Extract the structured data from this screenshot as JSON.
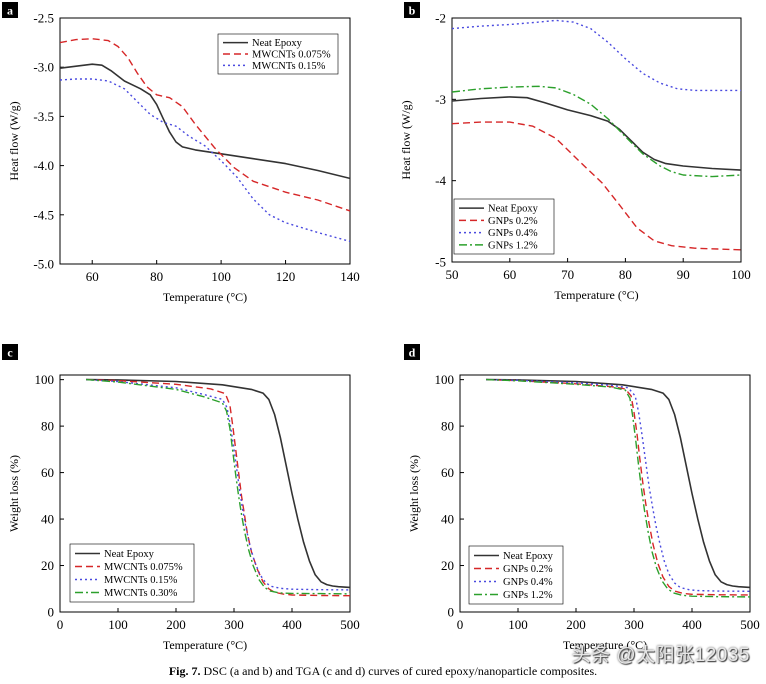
{
  "caption": {
    "label": "Fig. 7.",
    "text": "DSC (a and b) and TGA (c and d) curves of cured epoxy/nanoparticle composites."
  },
  "watermark": "头条 @太阳张12035",
  "colors": {
    "neat": "#333333",
    "red": "#d62728",
    "blue": "#4a4adf",
    "green": "#2ca02c"
  },
  "chart_data": [
    {
      "panel": "a",
      "type": "line",
      "xlabel": "Temperature (°C)",
      "ylabel": "Heat flow (W/g)",
      "xlim": [
        50,
        140
      ],
      "ylim": [
        -5.0,
        -2.5
      ],
      "xticks": [
        60,
        80,
        100,
        120,
        140
      ],
      "yticks": [
        -5.0,
        -4.5,
        -4.0,
        -3.5,
        -3.0,
        -2.5
      ],
      "legend": "top-center",
      "series": [
        {
          "name": "Neat Epoxy",
          "style": "solid",
          "color": "neat",
          "x": [
            50,
            55,
            60,
            63,
            66,
            70,
            75,
            78,
            80,
            82,
            84,
            86,
            88,
            92,
            100,
            110,
            120,
            130,
            140
          ],
          "y": [
            -3.01,
            -2.99,
            -2.97,
            -2.98,
            -3.04,
            -3.14,
            -3.22,
            -3.28,
            -3.38,
            -3.52,
            -3.66,
            -3.76,
            -3.81,
            -3.84,
            -3.88,
            -3.93,
            -3.98,
            -4.05,
            -4.13
          ]
        },
        {
          "name": "MWCNTs 0.075%",
          "style": "dashed",
          "color": "red",
          "x": [
            50,
            55,
            60,
            65,
            68,
            71,
            74,
            77,
            80,
            84,
            88,
            92,
            98,
            104,
            110,
            120,
            130,
            140
          ],
          "y": [
            -2.75,
            -2.72,
            -2.71,
            -2.73,
            -2.79,
            -2.9,
            -3.06,
            -3.2,
            -3.28,
            -3.31,
            -3.4,
            -3.58,
            -3.82,
            -4.02,
            -4.16,
            -4.27,
            -4.35,
            -4.46
          ]
        },
        {
          "name": "MWCNTs 0.15%",
          "style": "dotted",
          "color": "blue",
          "x": [
            50,
            55,
            60,
            65,
            70,
            74,
            78,
            82,
            86,
            90,
            95,
            100,
            105,
            110,
            115,
            120,
            130,
            140
          ],
          "y": [
            -3.13,
            -3.12,
            -3.12,
            -3.14,
            -3.22,
            -3.35,
            -3.48,
            -3.56,
            -3.6,
            -3.7,
            -3.8,
            -3.95,
            -4.12,
            -4.34,
            -4.5,
            -4.58,
            -4.68,
            -4.77
          ]
        }
      ]
    },
    {
      "panel": "b",
      "type": "line",
      "xlabel": "Temperature (°C)",
      "ylabel": "Heat flow (W/g)",
      "xlim": [
        50,
        100
      ],
      "ylim": [
        -5,
        -2
      ],
      "xticks": [
        50,
        60,
        70,
        80,
        90,
        100
      ],
      "yticks": [
        -5,
        -4,
        -3,
        -2
      ],
      "legend": "bottom-left",
      "series": [
        {
          "name": "Neat Epoxy",
          "style": "solid",
          "color": "neat",
          "x": [
            50,
            55,
            60,
            63,
            66,
            70,
            74,
            77,
            79,
            81,
            83,
            85,
            87,
            90,
            95,
            100
          ],
          "y": [
            -3.02,
            -2.99,
            -2.97,
            -2.98,
            -3.04,
            -3.13,
            -3.2,
            -3.27,
            -3.37,
            -3.51,
            -3.65,
            -3.74,
            -3.79,
            -3.82,
            -3.85,
            -3.87
          ]
        },
        {
          "name": "GNPs 0.2%",
          "style": "dashed",
          "color": "red",
          "x": [
            50,
            55,
            60,
            64,
            68,
            72,
            76,
            79,
            82,
            85,
            88,
            92,
            96,
            100
          ],
          "y": [
            -3.3,
            -3.28,
            -3.28,
            -3.33,
            -3.48,
            -3.76,
            -4.03,
            -4.3,
            -4.58,
            -4.74,
            -4.8,
            -4.83,
            -4.84,
            -4.85
          ]
        },
        {
          "name": "GNPs 0.4%",
          "style": "dotted",
          "color": "blue",
          "x": [
            50,
            55,
            60,
            65,
            68,
            71,
            74,
            77,
            80,
            83,
            86,
            89,
            92,
            96,
            100
          ],
          "y": [
            -2.13,
            -2.1,
            -2.08,
            -2.05,
            -2.03,
            -2.05,
            -2.13,
            -2.3,
            -2.5,
            -2.68,
            -2.8,
            -2.87,
            -2.89,
            -2.89,
            -2.89
          ]
        },
        {
          "name": "GNPs 1.2%",
          "style": "dashdot",
          "color": "green",
          "x": [
            50,
            55,
            60,
            65,
            68,
            71,
            74,
            77,
            80,
            83,
            86,
            88,
            90,
            95,
            100
          ],
          "y": [
            -2.91,
            -2.87,
            -2.85,
            -2.84,
            -2.86,
            -2.94,
            -3.06,
            -3.24,
            -3.46,
            -3.67,
            -3.82,
            -3.89,
            -3.93,
            -3.95,
            -3.93
          ]
        }
      ]
    },
    {
      "panel": "c",
      "type": "line",
      "xlabel": "Temperature (°C)",
      "ylabel": "Weight loss (%)",
      "xlim": [
        0,
        500
      ],
      "ylim": [
        0,
        102
      ],
      "xticks": [
        0,
        100,
        200,
        300,
        400,
        500
      ],
      "yticks": [
        0,
        20,
        40,
        60,
        80,
        100
      ],
      "legend": "bottom-left",
      "series": [
        {
          "name": "Neat Epoxy",
          "style": "solid",
          "color": "neat",
          "x": [
            45,
            100,
            200,
            280,
            330,
            350,
            360,
            370,
            380,
            390,
            400,
            410,
            420,
            430,
            440,
            450,
            460,
            470,
            480,
            490,
            500
          ],
          "y": [
            100,
            99.9,
            99.2,
            97.8,
            95.8,
            94.2,
            91.5,
            85,
            75,
            63,
            51,
            40,
            30,
            22,
            16,
            13,
            11.8,
            11.2,
            10.9,
            10.7,
            10.6
          ]
        },
        {
          "name": "MWCNTs 0.075%",
          "style": "dashed",
          "color": "red",
          "x": [
            45,
            100,
            200,
            260,
            285,
            293,
            298,
            303,
            308,
            313,
            318,
            323,
            330,
            340,
            350,
            360,
            370,
            385,
            400,
            450,
            500
          ],
          "y": [
            100,
            99.6,
            98,
            96,
            94,
            89,
            80,
            70,
            60,
            50,
            42,
            34,
            26,
            18.5,
            13,
            10,
            8.5,
            7.7,
            7.3,
            7.1,
            7
          ]
        },
        {
          "name": "MWCNTs 0.15%",
          "style": "dotted",
          "color": "blue",
          "x": [
            45,
            100,
            200,
            250,
            280,
            288,
            294,
            300,
            305,
            310,
            315,
            320,
            327,
            335,
            345,
            355,
            365,
            380,
            400,
            450,
            500
          ],
          "y": [
            100,
            99.2,
            96.5,
            93.5,
            91.5,
            88,
            80,
            70,
            61,
            52,
            44,
            37,
            29,
            22,
            16,
            12.5,
            11,
            10.2,
            9.8,
            9.6,
            9.5
          ]
        },
        {
          "name": "MWCNTs 0.30%",
          "style": "dashdot",
          "color": "green",
          "x": [
            45,
            100,
            200,
            250,
            280,
            287,
            293,
            298,
            303,
            308,
            313,
            318,
            325,
            333,
            343,
            353,
            363,
            378,
            400,
            450,
            500
          ],
          "y": [
            100,
            99,
            95.8,
            92.5,
            90,
            86.5,
            79,
            69,
            59,
            50,
            42,
            35,
            27,
            20,
            14,
            10.5,
            9,
            8.2,
            8,
            7.9,
            7.8
          ]
        }
      ]
    },
    {
      "panel": "d",
      "type": "line",
      "xlabel": "Temperature (°C)",
      "ylabel": "Weight loss (%)",
      "xlim": [
        0,
        500
      ],
      "ylim": [
        0,
        102
      ],
      "xticks": [
        0,
        100,
        200,
        300,
        400,
        500
      ],
      "yticks": [
        0,
        20,
        40,
        60,
        80,
        100
      ],
      "legend": "bottom-left",
      "series": [
        {
          "name": "Neat Epoxy",
          "style": "solid",
          "color": "neat",
          "x": [
            45,
            100,
            200,
            280,
            330,
            350,
            360,
            370,
            380,
            390,
            400,
            410,
            420,
            430,
            440,
            450,
            460,
            470,
            480,
            490,
            500
          ],
          "y": [
            100,
            99.9,
            99.2,
            97.8,
            95.8,
            94.2,
            91.5,
            85,
            75,
            63,
            51,
            40,
            30,
            22,
            16,
            13,
            11.8,
            11.2,
            10.9,
            10.7,
            10.6
          ]
        },
        {
          "name": "GNPs 0.2%",
          "style": "dashed",
          "color": "red",
          "x": [
            45,
            100,
            200,
            260,
            285,
            295,
            300,
            305,
            310,
            315,
            320,
            326,
            333,
            341,
            350,
            360,
            370,
            385,
            400,
            450,
            500
          ],
          "y": [
            100,
            99.6,
            98.2,
            97,
            96,
            93,
            86,
            77,
            66,
            56,
            47,
            38,
            29,
            21,
            15,
            11,
            9,
            8,
            7.6,
            7.4,
            7.3
          ]
        },
        {
          "name": "GNPs 0.4%",
          "style": "dotted",
          "color": "blue",
          "x": [
            45,
            100,
            200,
            260,
            290,
            302,
            308,
            314,
            320,
            326,
            332,
            338,
            345,
            352,
            360,
            370,
            380,
            395,
            410,
            450,
            500
          ],
          "y": [
            100,
            99.7,
            98.6,
            97.6,
            96.5,
            93,
            86,
            76,
            65,
            54,
            45,
            37,
            29,
            22,
            16.5,
            12.5,
            10.5,
            9.6,
            9.2,
            9,
            8.9
          ]
        },
        {
          "name": "GNPs 1.2%",
          "style": "dashdot",
          "color": "green",
          "x": [
            45,
            100,
            200,
            260,
            285,
            293,
            298,
            303,
            308,
            313,
            318,
            324,
            331,
            339,
            348,
            358,
            368,
            383,
            400,
            450,
            500
          ],
          "y": [
            100,
            99.5,
            98,
            96.8,
            95.5,
            92,
            84,
            74,
            63,
            53,
            44,
            35,
            26,
            19,
            13.5,
            10,
            8.2,
            7.2,
            6.8,
            6.6,
            6.5
          ]
        }
      ]
    }
  ]
}
